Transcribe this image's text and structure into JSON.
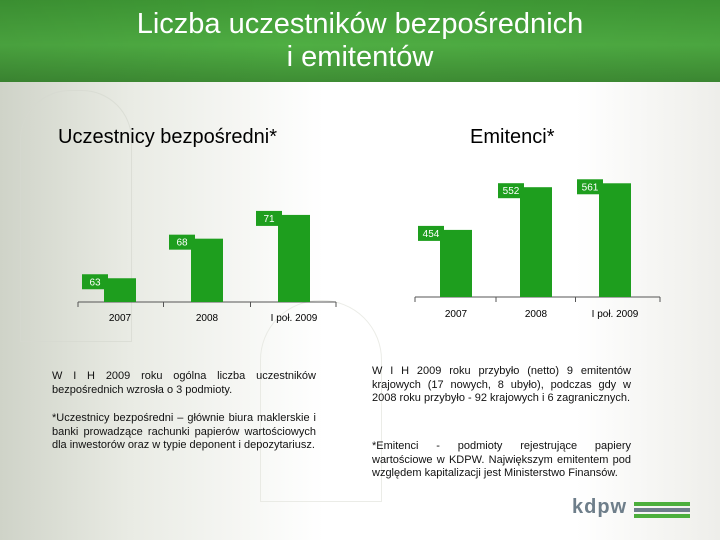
{
  "title": {
    "line1": "Liczba uczestników bezpośrednich",
    "line2": "i emitentów"
  },
  "left_section": {
    "subtitle": "Uczestnicy bezpośredni*"
  },
  "right_section": {
    "subtitle": "Emitenci*"
  },
  "chart_data": [
    {
      "type": "bar",
      "title": "Uczestnicy bezpośredni*",
      "categories": [
        "2007",
        "2008",
        "I poł. 2009"
      ],
      "values": [
        63,
        68,
        71
      ],
      "ylim": [
        60,
        72
      ],
      "bar_color": "#1e9e1e"
    },
    {
      "type": "bar",
      "title": "Emitenci*",
      "categories": [
        "2007",
        "2008",
        "I poł. 2009"
      ],
      "values": [
        454,
        552,
        561
      ],
      "ylim": [
        300,
        580
      ],
      "bar_color": "#1e9e1e"
    }
  ],
  "text": {
    "left_p1": "W I H 2009 roku ogólna liczba uczestników bezpośrednich wzrosła o 3 podmioty.",
    "left_p2": "*Uczestnicy bezpośredni – głównie biura maklerskie i banki prowadzące rachunki papierów wartościowych dla inwestorów oraz w typie deponent i depozytariusz.",
    "right_p1": "W I H 2009 roku przybyło (netto) 9 emitentów krajowych (17 nowych, 8 ubyło), podczas gdy w 2008 roku przybyło - 92 krajowych i 6 zagranicznych.",
    "right_p2": "*Emitenci - podmioty rejestrujące papiery wartościowe w KDPW. Największym emitentem pod względem kapitalizacji jest Ministerstwo Finansów."
  },
  "logo": {
    "text": "kdpw",
    "colors": [
      "#6e7e8a",
      "#4caf3c"
    ]
  }
}
